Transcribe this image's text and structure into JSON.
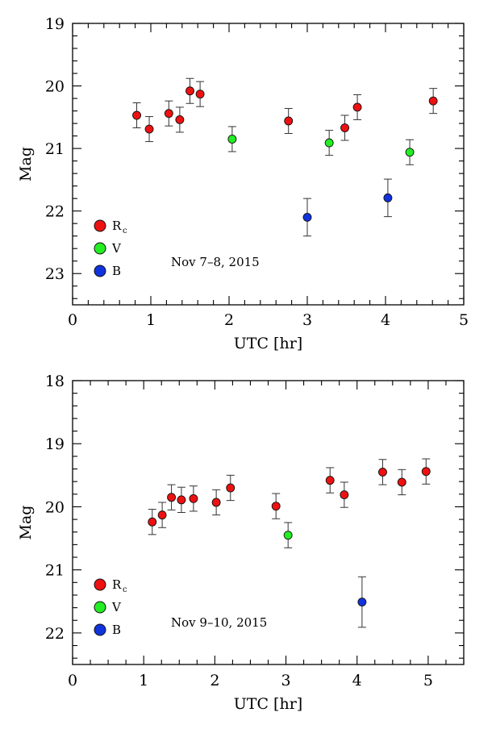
{
  "chart_data": [
    {
      "type": "scatter",
      "title": "",
      "annotation": "Nov 7–8, 2015",
      "xlabel": "UTC [hr]",
      "ylabel": "Mag",
      "xlim": [
        0,
        5
      ],
      "ylim": [
        23.5,
        19
      ],
      "y_inverted": true,
      "xticks": [
        "0",
        "1",
        "2",
        "3",
        "4",
        "5"
      ],
      "yticks": [
        "19",
        "20",
        "21",
        "22",
        "23"
      ],
      "error_bars": true,
      "legend_position": "lower-left",
      "series": [
        {
          "name": "R",
          "name_sub": "c",
          "color": "#ee1111",
          "points": [
            {
              "x": 0.82,
              "y": 20.47,
              "err": 0.2
            },
            {
              "x": 0.98,
              "y": 20.69,
              "err": 0.2
            },
            {
              "x": 1.23,
              "y": 20.44,
              "err": 0.2
            },
            {
              "x": 1.37,
              "y": 20.54,
              "err": 0.2
            },
            {
              "x": 1.5,
              "y": 20.08,
              "err": 0.2
            },
            {
              "x": 1.63,
              "y": 20.13,
              "err": 0.2
            },
            {
              "x": 2.76,
              "y": 20.56,
              "err": 0.2
            },
            {
              "x": 3.48,
              "y": 20.67,
              "err": 0.2
            },
            {
              "x": 3.64,
              "y": 20.34,
              "err": 0.2
            },
            {
              "x": 4.61,
              "y": 20.24,
              "err": 0.2
            }
          ]
        },
        {
          "name": "V",
          "name_sub": "",
          "color": "#22ee22",
          "points": [
            {
              "x": 2.04,
              "y": 20.85,
              "err": 0.2
            },
            {
              "x": 3.28,
              "y": 20.91,
              "err": 0.2
            },
            {
              "x": 4.31,
              "y": 21.06,
              "err": 0.2
            }
          ]
        },
        {
          "name": "B",
          "name_sub": "",
          "color": "#1133dd",
          "points": [
            {
              "x": 3.0,
              "y": 22.1,
              "err": 0.3
            },
            {
              "x": 4.03,
              "y": 21.79,
              "err": 0.3
            }
          ]
        }
      ]
    },
    {
      "type": "scatter",
      "title": "",
      "annotation": "Nov 9–10, 2015",
      "xlabel": "UTC [hr]",
      "ylabel": "Mag",
      "xlim": [
        0,
        5.5
      ],
      "ylim": [
        22.5,
        18
      ],
      "y_inverted": true,
      "xticks": [
        "0",
        "1",
        "2",
        "3",
        "4",
        "5"
      ],
      "yticks": [
        "18",
        "19",
        "20",
        "21",
        "22"
      ],
      "error_bars": true,
      "legend_position": "lower-left",
      "series": [
        {
          "name": "R",
          "name_sub": "c",
          "color": "#ee1111",
          "points": [
            {
              "x": 1.12,
              "y": 20.24,
              "err": 0.2
            },
            {
              "x": 1.26,
              "y": 20.13,
              "err": 0.2
            },
            {
              "x": 1.39,
              "y": 19.85,
              "err": 0.2
            },
            {
              "x": 1.53,
              "y": 19.89,
              "err": 0.2
            },
            {
              "x": 1.7,
              "y": 19.87,
              "err": 0.2
            },
            {
              "x": 2.02,
              "y": 19.93,
              "err": 0.2
            },
            {
              "x": 2.22,
              "y": 19.7,
              "err": 0.2
            },
            {
              "x": 2.86,
              "y": 19.99,
              "err": 0.2
            },
            {
              "x": 3.62,
              "y": 19.58,
              "err": 0.2
            },
            {
              "x": 3.82,
              "y": 19.81,
              "err": 0.2
            },
            {
              "x": 4.36,
              "y": 19.45,
              "err": 0.2
            },
            {
              "x": 4.63,
              "y": 19.61,
              "err": 0.2
            },
            {
              "x": 4.97,
              "y": 19.44,
              "err": 0.2
            }
          ]
        },
        {
          "name": "V",
          "name_sub": "",
          "color": "#22ee22",
          "points": [
            {
              "x": 3.03,
              "y": 20.45,
              "err": 0.2
            }
          ]
        },
        {
          "name": "B",
          "name_sub": "",
          "color": "#1133dd",
          "points": [
            {
              "x": 4.07,
              "y": 21.51,
              "err": 0.4
            }
          ]
        }
      ]
    }
  ]
}
